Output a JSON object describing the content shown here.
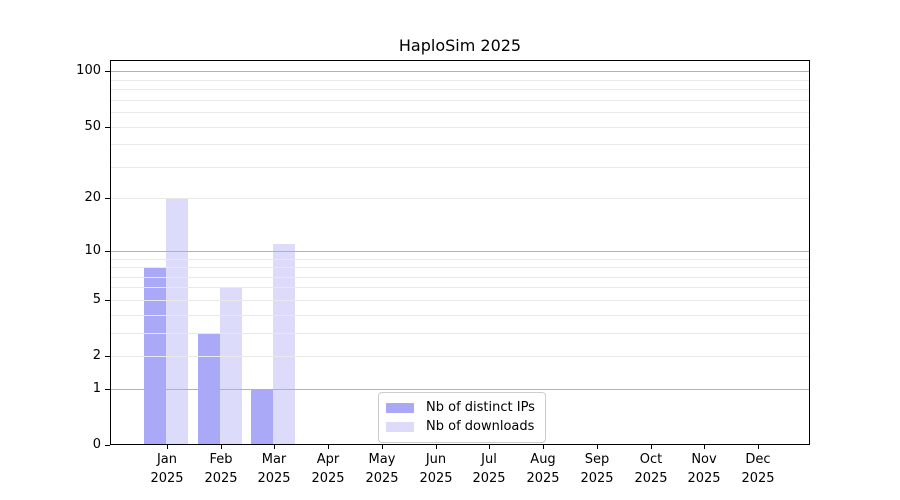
{
  "chart_data": {
    "type": "bar",
    "title": "HaploSim 2025",
    "categories": [
      "Jan",
      "Feb",
      "Mar",
      "Apr",
      "May",
      "Jun",
      "Jul",
      "Aug",
      "Sep",
      "Oct",
      "Nov",
      "Dec"
    ],
    "x_year_label": "2025",
    "series": [
      {
        "name": "Nb of distinct IPs",
        "color": "#a9a9f7",
        "values": [
          8,
          3,
          1,
          0,
          0,
          0,
          0,
          0,
          0,
          0,
          0,
          0
        ]
      },
      {
        "name": "Nb of downloads",
        "color": "#dcdcfa",
        "values": [
          20,
          6,
          11,
          0,
          0,
          0,
          0,
          0,
          0,
          0,
          0,
          0
        ]
      }
    ],
    "y_axis": {
      "scale": "log1p",
      "ticks": [
        0,
        1,
        2,
        5,
        10,
        20,
        50,
        100
      ],
      "ylim": [
        0,
        115
      ],
      "major_gridlines": [
        1,
        10,
        100
      ],
      "minor_gridlines": [
        2,
        3,
        4,
        5,
        6,
        7,
        8,
        9,
        20,
        30,
        40,
        50,
        60,
        70,
        80,
        90
      ]
    },
    "grid": true,
    "legend_position": "inside-bottom-center",
    "colors": {
      "major_gridline": "#b2b2b2",
      "minor_gridline": "#e9e9e9",
      "axis": "#000000",
      "background": "#ffffff"
    }
  }
}
